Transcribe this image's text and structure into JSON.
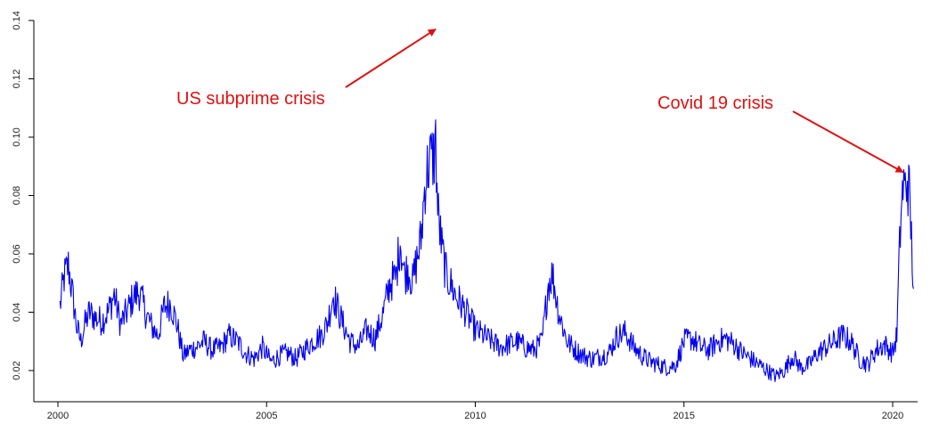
{
  "chart_data": {
    "type": "line",
    "title": "",
    "xlabel": "",
    "ylabel": "",
    "xlim": [
      2000,
      2020.6
    ],
    "ylim": [
      0.015,
      0.14
    ],
    "x_ticks": [
      2000,
      2005,
      2010,
      2015,
      2020
    ],
    "x_tick_labels": [
      "2000",
      "2005",
      "2010",
      "2015",
      "2020"
    ],
    "y_ticks": [
      0.02,
      0.04,
      0.06,
      0.08,
      0.1,
      0.12,
      0.14
    ],
    "y_tick_labels": [
      "0.02",
      "0.04",
      "0.06",
      "0.08",
      "0.10",
      "0.12",
      "0.14"
    ],
    "grid": false,
    "line_color": "#0000ee",
    "series": [
      {
        "x": [
          2000.05,
          2000.15,
          2000.25,
          2000.35,
          2000.45,
          2000.55,
          2000.65,
          2000.75,
          2000.9,
          2001.05,
          2001.2,
          2001.35,
          2001.5,
          2001.65,
          2001.8,
          2001.95,
          2002.1,
          2002.25,
          2002.4,
          2002.55,
          2002.7,
          2002.85,
          2003.0,
          2003.15,
          2003.3,
          2003.5,
          2003.7,
          2003.9,
          2004.1,
          2004.3,
          2004.5,
          2004.7,
          2004.9,
          2005.1,
          2005.3,
          2005.5,
          2005.7,
          2005.9,
          2006.1,
          2006.3,
          2006.45,
          2006.6,
          2006.8,
          2007.0,
          2007.2,
          2007.4,
          2007.6,
          2007.8,
          2007.95,
          2008.1,
          2008.2,
          2008.3,
          2008.4,
          2008.5,
          2008.6,
          2008.7,
          2008.8,
          2008.9,
          2009.0,
          2009.05,
          2009.1,
          2009.2,
          2009.3,
          2009.4,
          2009.55,
          2009.7,
          2009.85,
          2010.0,
          2010.2,
          2010.4,
          2010.6,
          2010.8,
          2011.0,
          2011.2,
          2011.4,
          2011.6,
          2011.75,
          2011.85,
          2012.0,
          2012.2,
          2012.4,
          2012.6,
          2012.8,
          2013.0,
          2013.2,
          2013.4,
          2013.6,
          2013.8,
          2014.0,
          2014.2,
          2014.4,
          2014.6,
          2014.8,
          2015.0,
          2015.2,
          2015.4,
          2015.6,
          2015.8,
          2016.0,
          2016.2,
          2016.4,
          2016.6,
          2016.8,
          2017.0,
          2017.2,
          2017.4,
          2017.6,
          2017.8,
          2018.0,
          2018.2,
          2018.4,
          2018.6,
          2018.8,
          2019.0,
          2019.2,
          2019.4,
          2019.6,
          2019.8,
          2020.0,
          2020.1,
          2020.15,
          2020.2,
          2020.25,
          2020.3,
          2020.35,
          2020.4,
          2020.45,
          2020.5
        ],
        "values": [
          0.042,
          0.052,
          0.056,
          0.046,
          0.035,
          0.03,
          0.036,
          0.04,
          0.038,
          0.037,
          0.04,
          0.046,
          0.036,
          0.04,
          0.045,
          0.047,
          0.04,
          0.035,
          0.032,
          0.042,
          0.043,
          0.036,
          0.025,
          0.027,
          0.028,
          0.03,
          0.027,
          0.028,
          0.032,
          0.03,
          0.026,
          0.024,
          0.028,
          0.023,
          0.025,
          0.026,
          0.024,
          0.027,
          0.03,
          0.032,
          0.036,
          0.046,
          0.037,
          0.03,
          0.028,
          0.034,
          0.031,
          0.04,
          0.05,
          0.052,
          0.065,
          0.053,
          0.055,
          0.05,
          0.058,
          0.065,
          0.085,
          0.092,
          0.093,
          0.098,
          0.075,
          0.062,
          0.053,
          0.05,
          0.045,
          0.042,
          0.038,
          0.034,
          0.032,
          0.03,
          0.028,
          0.029,
          0.03,
          0.028,
          0.027,
          0.03,
          0.05,
          0.053,
          0.04,
          0.03,
          0.027,
          0.025,
          0.024,
          0.025,
          0.026,
          0.032,
          0.033,
          0.028,
          0.025,
          0.023,
          0.022,
          0.021,
          0.022,
          0.03,
          0.031,
          0.028,
          0.027,
          0.03,
          0.031,
          0.029,
          0.026,
          0.024,
          0.022,
          0.02,
          0.018,
          0.02,
          0.025,
          0.021,
          0.022,
          0.026,
          0.028,
          0.03,
          0.032,
          0.03,
          0.024,
          0.022,
          0.027,
          0.029,
          0.026,
          0.032,
          0.055,
          0.075,
          0.083,
          0.082,
          0.086,
          0.08,
          0.065,
          0.048
        ]
      }
    ],
    "annotations": [
      {
        "text": "US subprime crisis",
        "x": 2009.05,
        "y": 0.137,
        "color": "#dd1111"
      },
      {
        "text": "Covid 19 crisis",
        "x": 2020.25,
        "y": 0.088,
        "color": "#dd1111"
      }
    ]
  }
}
